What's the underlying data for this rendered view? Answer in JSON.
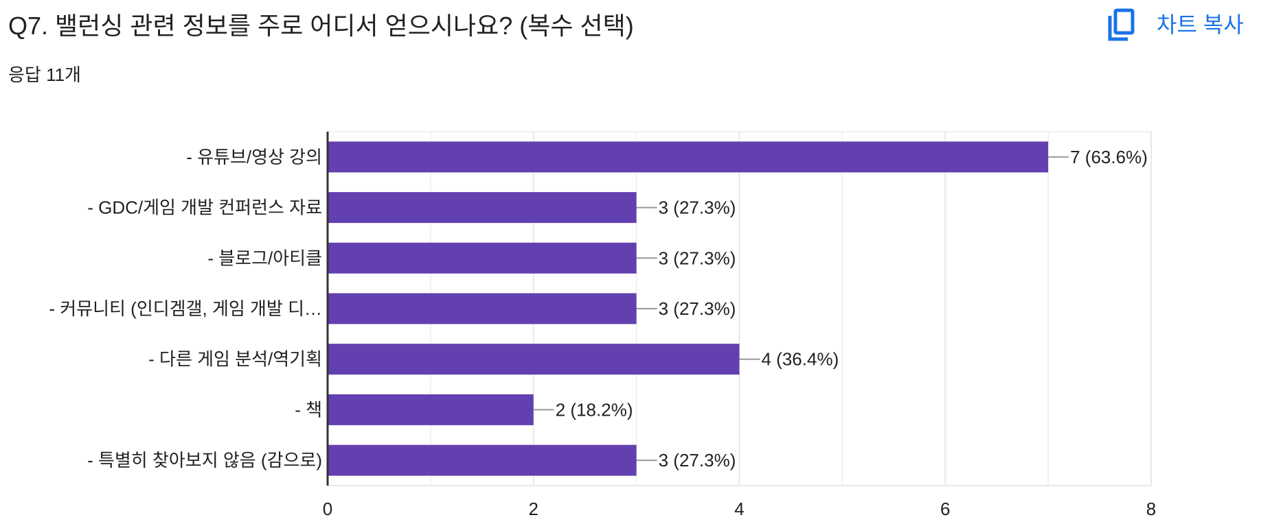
{
  "question": {
    "title": "Q7. 밸런싱 관련 정보를 주로 어디서 얻으시나요? (복수 선택)",
    "responses": "응답 11개"
  },
  "toolbar": {
    "copy_icon": "copy-icon",
    "copy_label": "차트 복사"
  },
  "colors": {
    "bar": "#6340b0",
    "accent": "#1a73e8",
    "grid": "#e8e8e8",
    "axis": "#333333",
    "connector": "#999999"
  },
  "chart_data": {
    "type": "bar",
    "orientation": "horizontal",
    "categories": [
      "- 유튜브/영상 강의",
      "- GDC/게임 개발 컨퍼런스 자료",
      "- 블로그/아티클",
      "- 커뮤니티 (인디겜갤, 게임 개발 디…",
      "- 다른 게임 분석/역기획",
      "- 책",
      "- 특별히 찾아보지 않음 (감으로)"
    ],
    "values": [
      7,
      3,
      3,
      3,
      4,
      2,
      3
    ],
    "value_labels": [
      "7 (63.6%)",
      "3 (27.3%)",
      "3 (27.3%)",
      "3 (27.3%)",
      "4 (36.4%)",
      "2 (18.2%)",
      "3 (27.3%)"
    ],
    "xlim": [
      0,
      8
    ],
    "x_ticks": [
      "0",
      "2",
      "4",
      "6",
      "8"
    ],
    "x_tick_values": [
      0,
      2,
      4,
      6,
      8
    ],
    "minor_grid": [
      1,
      3,
      5,
      7
    ],
    "grid": true
  }
}
